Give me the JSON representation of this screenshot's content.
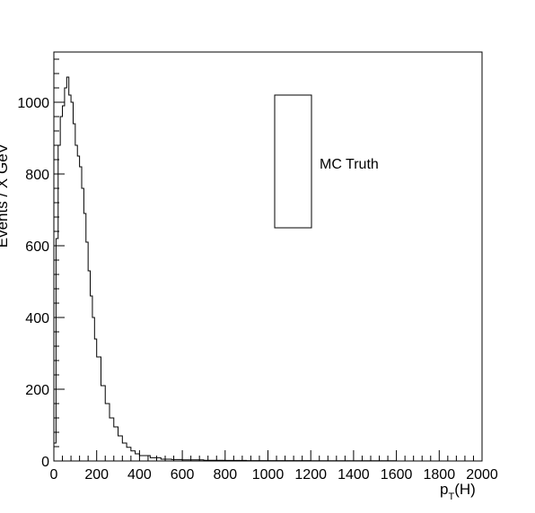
{
  "chart_data": {
    "type": "line",
    "title": "",
    "xlabel": "p_T(H)",
    "ylabel": "Events / X GeV",
    "xlim": [
      0,
      2000
    ],
    "ylim": [
      0,
      1140
    ],
    "x_ticks": [
      0,
      200,
      400,
      600,
      800,
      1000,
      1200,
      1400,
      1600,
      1800,
      2000
    ],
    "y_ticks": [
      0,
      200,
      400,
      600,
      800,
      1000
    ],
    "grid": false,
    "legend_position": "top-right",
    "series": [
      {
        "name": "MC Truth",
        "drawstyle": "steps",
        "x": [
          0,
          10,
          20,
          30,
          40,
          50,
          60,
          70,
          80,
          90,
          100,
          110,
          120,
          130,
          140,
          150,
          160,
          170,
          180,
          190,
          200,
          220,
          240,
          260,
          280,
          300,
          320,
          340,
          360,
          380,
          400,
          450,
          500,
          550,
          600,
          700,
          800,
          900,
          1000,
          1200,
          1400,
          1600,
          1800,
          2000
        ],
        "values": [
          50,
          620,
          880,
          960,
          990,
          1040,
          1070,
          1020,
          1000,
          940,
          880,
          850,
          820,
          760,
          690,
          610,
          530,
          460,
          400,
          340,
          290,
          210,
          160,
          120,
          95,
          70,
          50,
          38,
          28,
          20,
          15,
          9,
          5,
          4,
          3,
          2,
          1.5,
          1,
          1,
          0.5,
          0.5,
          0,
          0,
          0
        ]
      }
    ]
  },
  "legend": {
    "label": "MC Truth",
    "color": "#000000"
  }
}
